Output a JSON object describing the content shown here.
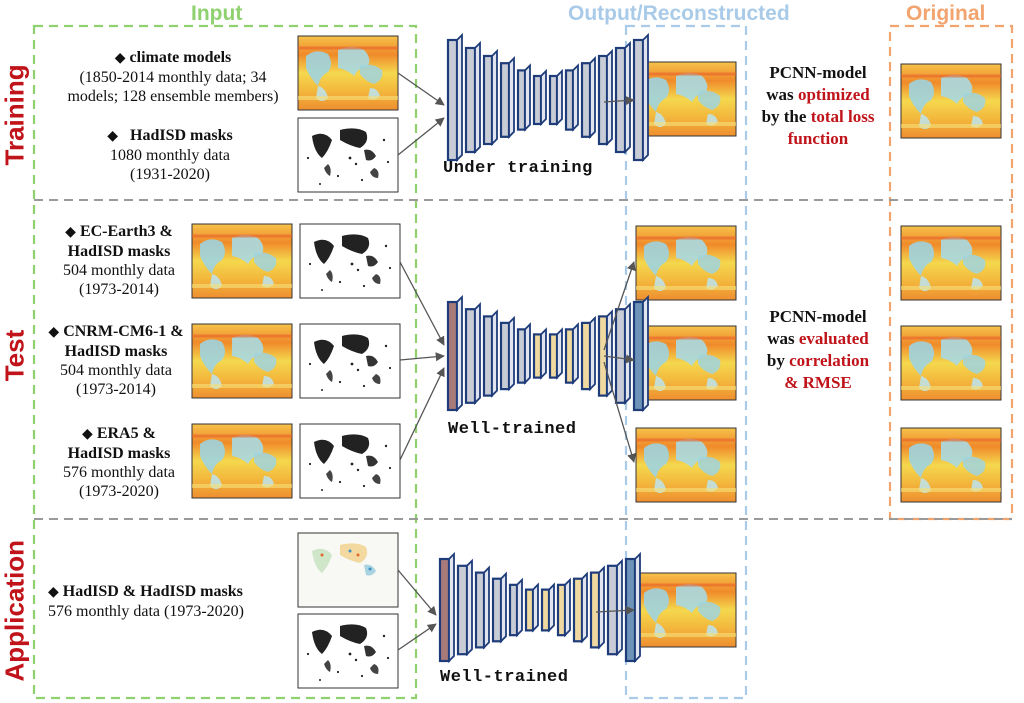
{
  "columns": {
    "input": "Input",
    "output": "Output/Reconstructed",
    "original": "Original"
  },
  "rows": {
    "training": "Training",
    "test": "Test",
    "application": "Application"
  },
  "training": {
    "climate_title": "climate models",
    "climate_l1": "(1850-2014 monthly data; 34",
    "climate_l2": "models; 128 ensemble members)",
    "mask_title": "HadISD masks",
    "mask_l1": "1080 monthly data",
    "mask_l2": "(1931-2020)",
    "network_state": "Under training",
    "note_l1": "PCNN-model",
    "note_l2a": "was ",
    "note_l2b": "optimized",
    "note_l3a": "by the ",
    "note_l3b": "total loss",
    "note_l4": "function"
  },
  "test": {
    "ec_l1": "EC-Earth3 &",
    "ec_l2": "HadISD masks",
    "ec_l3": "504 monthly data",
    "ec_l4": "(1973-2014)",
    "cn_l1": "CNRM-CM6-1 &",
    "cn_l2": "HadISD masks",
    "cn_l3": "504 monthly data",
    "cn_l4": "(1973-2014)",
    "era_l1": "ERA5 &",
    "era_l2": "HadISD masks",
    "era_l3": "576 monthly data",
    "era_l4": "(1973-2020)",
    "network_state": "Well-trained",
    "note_l1": "PCNN-model",
    "note_l2a": "was ",
    "note_l2b": "evaluated",
    "note_l3a": "by ",
    "note_l3b": "correlation",
    "note_l4": "& RMSE"
  },
  "application": {
    "title": "HadISD & HadISD masks",
    "detail": "576 monthly data (1973-2020)",
    "network_state": "Well-trained"
  },
  "colors": {
    "input_border": "#8fd16f",
    "output_border": "#a9cbe8",
    "original_border": "#f2a46e",
    "row_label": "#c0131a",
    "network_stroke": "#1f3c7a",
    "divider": "#9a9a9a"
  }
}
